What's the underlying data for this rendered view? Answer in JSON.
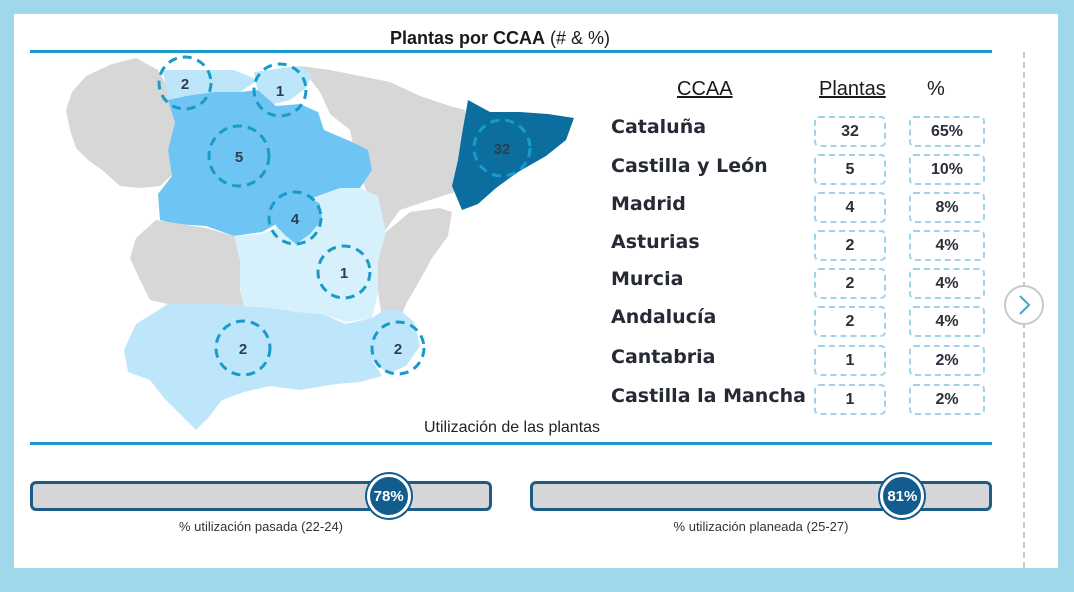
{
  "header": {
    "title_bold": "Plantas por CCAA",
    "title_rest": " (# & %)"
  },
  "map": {
    "bubbles": [
      {
        "region": "Asturias",
        "value": "2"
      },
      {
        "region": "Cantabria",
        "value": "1"
      },
      {
        "region": "Castilla y León",
        "value": "5"
      },
      {
        "region": "Cataluña",
        "value": "32"
      },
      {
        "region": "Madrid",
        "value": "4"
      },
      {
        "region": "Castilla la Mancha",
        "value": "1"
      },
      {
        "region": "Andalucía",
        "value": "2"
      },
      {
        "region": "Murcia",
        "value": "2"
      }
    ],
    "colors": {
      "dark": "#0b6e9f",
      "medium": "#6ec5f4",
      "light": "#bde6fb",
      "lightest": "#d6f0fc",
      "grey": "#d7d7d7"
    }
  },
  "table": {
    "headers": {
      "region": "CCAA",
      "plants": "Plantas",
      "pct": "%"
    },
    "rows": [
      {
        "region": "Cataluña",
        "plants": "32",
        "pct": "65%"
      },
      {
        "region": "Castilla y León",
        "plants": "5",
        "pct": "10%"
      },
      {
        "region": "Madrid",
        "plants": "4",
        "pct": "8%"
      },
      {
        "region": "Asturias",
        "plants": "2",
        "pct": "4%"
      },
      {
        "region": "Murcia",
        "plants": "2",
        "pct": "4%"
      },
      {
        "region": "Andalucía",
        "plants": "2",
        "pct": "4%"
      },
      {
        "region": "Cantabria",
        "plants": "1",
        "pct": "2%"
      },
      {
        "region": "Castilla la Mancha",
        "plants": "1",
        "pct": "2%"
      }
    ]
  },
  "utilization": {
    "title": "Utilización de las plantas",
    "past": {
      "label": "78%",
      "value": 0.78,
      "caption": "% utilización pasada (22-24)"
    },
    "planned": {
      "label": "81%",
      "value": 0.81,
      "caption": "% utilización planeada (25-27)"
    }
  },
  "nav": {
    "next_icon": "chevron-right-icon"
  }
}
